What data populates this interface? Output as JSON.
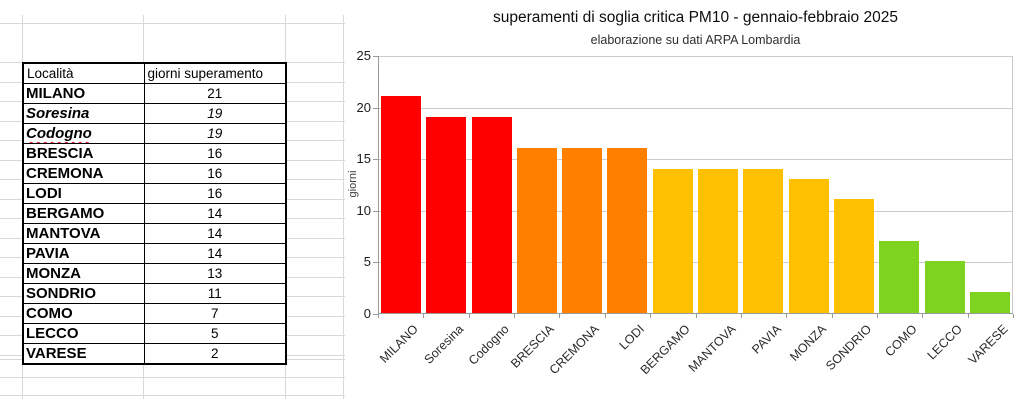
{
  "spreadsheet": {
    "table": {
      "headers": [
        {
          "label": "Località"
        },
        {
          "label": "giorni superamento"
        }
      ],
      "rows": [
        {
          "city": "MILANO",
          "days": "21",
          "text_style": "bold-caps",
          "misspelled": false
        },
        {
          "city": "Soresina",
          "days": "19",
          "text_style": "bold-italic",
          "misspelled": false
        },
        {
          "city": "Codogno",
          "days": "19",
          "text_style": "bold-italic",
          "misspelled": true
        },
        {
          "city": "BRESCIA",
          "days": "16",
          "text_style": "bold-caps",
          "misspelled": false
        },
        {
          "city": "CREMONA",
          "days": "16",
          "text_style": "bold-caps",
          "misspelled": false
        },
        {
          "city": "LODI",
          "days": "16",
          "text_style": "bold-caps",
          "misspelled": false
        },
        {
          "city": "BERGAMO",
          "days": "14",
          "text_style": "bold-caps",
          "misspelled": false
        },
        {
          "city": "MANTOVA",
          "days": "14",
          "text_style": "bold-caps",
          "misspelled": false
        },
        {
          "city": "PAVIA",
          "days": "14",
          "text_style": "bold-caps",
          "misspelled": false
        },
        {
          "city": "MONZA",
          "days": "13",
          "text_style": "bold-caps",
          "misspelled": false
        },
        {
          "city": "SONDRIO",
          "days": "11",
          "text_style": "bold-caps",
          "misspelled": false
        },
        {
          "city": "COMO",
          "days": "7",
          "text_style": "bold-caps",
          "misspelled": false
        },
        {
          "city": "LECCO",
          "days": "5",
          "text_style": "bold-caps",
          "misspelled": false
        },
        {
          "city": "VARESE",
          "days": "2",
          "text_style": "bold-caps",
          "misspelled": false
        }
      ]
    },
    "gridline_color": "#d8d8d8",
    "spellcheck_underline_color": "#e8112d"
  },
  "chart_data": {
    "type": "bar",
    "title": "superamenti di soglia critica PM10 - gennaio-febbraio 2025",
    "subtitle": "elaborazione su dati ARPA Lombardia",
    "ylabel": "giorni",
    "xlabel": "",
    "categories": [
      "MILANO",
      "Soresina",
      "Codogno",
      "BRESCIA",
      "CREMONA",
      "LODI",
      "BERGAMO",
      "MANTOVA",
      "PAVIA",
      "MONZA",
      "SONDRIO",
      "COMO",
      "LECCO",
      "VARESE"
    ],
    "values": [
      21,
      19,
      19,
      16,
      16,
      16,
      14,
      14,
      14,
      13,
      11,
      7,
      5,
      2
    ],
    "bar_colors": [
      "#ff0000",
      "#ff0000",
      "#ff0000",
      "#ff8000",
      "#ff8000",
      "#ff8000",
      "#ffc000",
      "#ffc000",
      "#ffc000",
      "#ffc000",
      "#ffc000",
      "#7ed321",
      "#7ed321",
      "#7ed321"
    ],
    "ylim": [
      0,
      25
    ],
    "yticks": [
      0,
      5,
      10,
      15,
      20,
      25
    ],
    "grid": true,
    "legend": "none",
    "grid_color": "#cccccc",
    "axis_color": "#9a9a9a",
    "plot_border_color": "#c9c9c9"
  }
}
